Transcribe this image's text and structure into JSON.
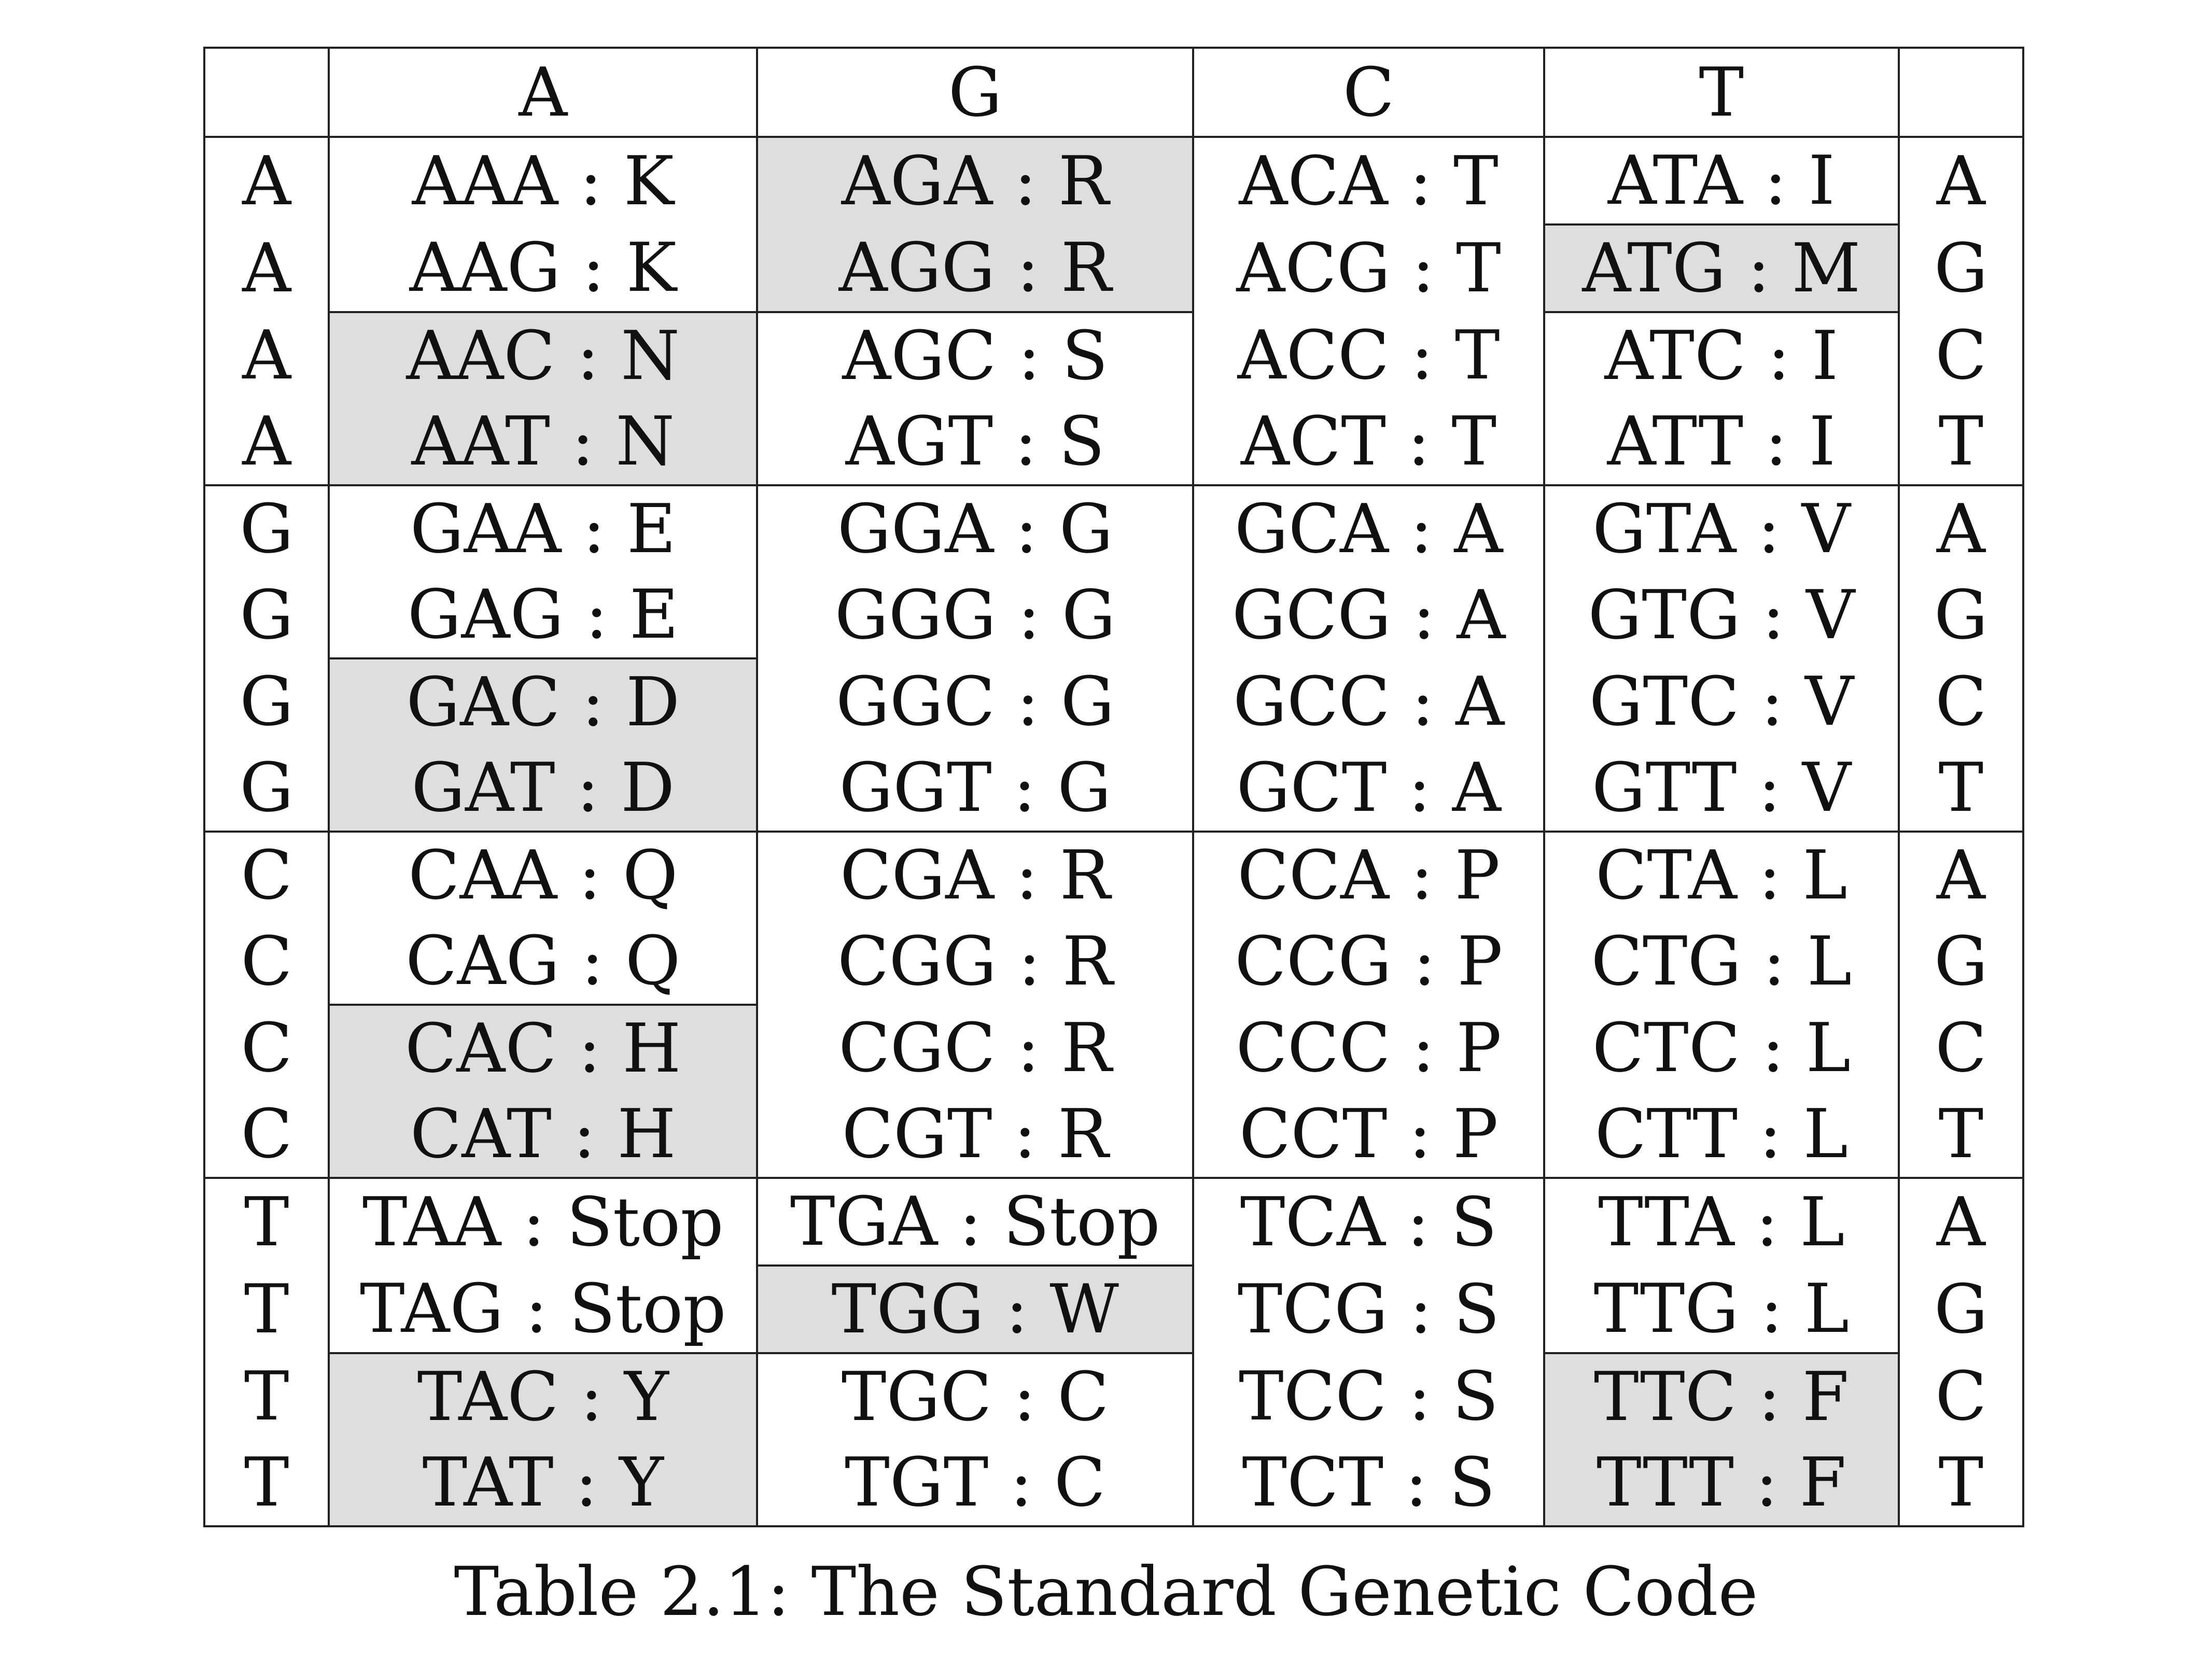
{
  "table": {
    "header": [
      "",
      "A",
      "G",
      "C",
      "T",
      ""
    ],
    "rows": [
      {
        "first": "A",
        "cells": [
          "AAA : K",
          "AGA : R",
          "ACA : T",
          "ATA : I"
        ],
        "third": "A"
      },
      {
        "first": "A",
        "cells": [
          "AAG : K",
          "AGG : R",
          "ACG : T",
          "ATG : M"
        ],
        "third": "G"
      },
      {
        "first": "A",
        "cells": [
          "AAC : N",
          "AGC : S",
          "ACC : T",
          "ATC : I"
        ],
        "third": "C"
      },
      {
        "first": "A",
        "cells": [
          "AAT : N",
          "AGT : S",
          "ACT : T",
          "ATT : I"
        ],
        "third": "T"
      },
      {
        "first": "G",
        "cells": [
          "GAA : E",
          "GGA : G",
          "GCA : A",
          "GTA : V"
        ],
        "third": "A"
      },
      {
        "first": "G",
        "cells": [
          "GAG : E",
          "GGG : G",
          "GCG : A",
          "GTG : V"
        ],
        "third": "G"
      },
      {
        "first": "G",
        "cells": [
          "GAC : D",
          "GGC : G",
          "GCC : A",
          "GTC : V"
        ],
        "third": "C"
      },
      {
        "first": "G",
        "cells": [
          "GAT : D",
          "GGT : G",
          "GCT : A",
          "GTT : V"
        ],
        "third": "T"
      },
      {
        "first": "C",
        "cells": [
          "CAA : Q",
          "CGA : R",
          "CCA : P",
          "CTA : L"
        ],
        "third": "A"
      },
      {
        "first": "C",
        "cells": [
          "CAG : Q",
          "CGG : R",
          "CCG : P",
          "CTG : L"
        ],
        "third": "G"
      },
      {
        "first": "C",
        "cells": [
          "CAC : H",
          "CGC : R",
          "CCC : P",
          "CTC : L"
        ],
        "third": "C"
      },
      {
        "first": "C",
        "cells": [
          "CAT : H",
          "CGT : R",
          "CCT : P",
          "CTT : L"
        ],
        "third": "T"
      },
      {
        "first": "T",
        "cells": [
          "TAA : Stop",
          "TGA : Stop",
          "TCA : S",
          "TTA : L"
        ],
        "third": "A"
      },
      {
        "first": "T",
        "cells": [
          "TAG : Stop",
          "TGG : W",
          "TCG : S",
          "TTG : L"
        ],
        "third": "G"
      },
      {
        "first": "T",
        "cells": [
          "TAC : Y",
          "TGC : C",
          "TCC : S",
          "TTC : F"
        ],
        "third": "C"
      },
      {
        "first": "T",
        "cells": [
          "TAT : Y",
          "TGT : C",
          "TCT : S",
          "TTT : F"
        ],
        "third": "T"
      }
    ],
    "shaded_color": "#dedede",
    "border_color": "#222222"
  },
  "caption": "Table 2.1: The Standard Genetic Code"
}
